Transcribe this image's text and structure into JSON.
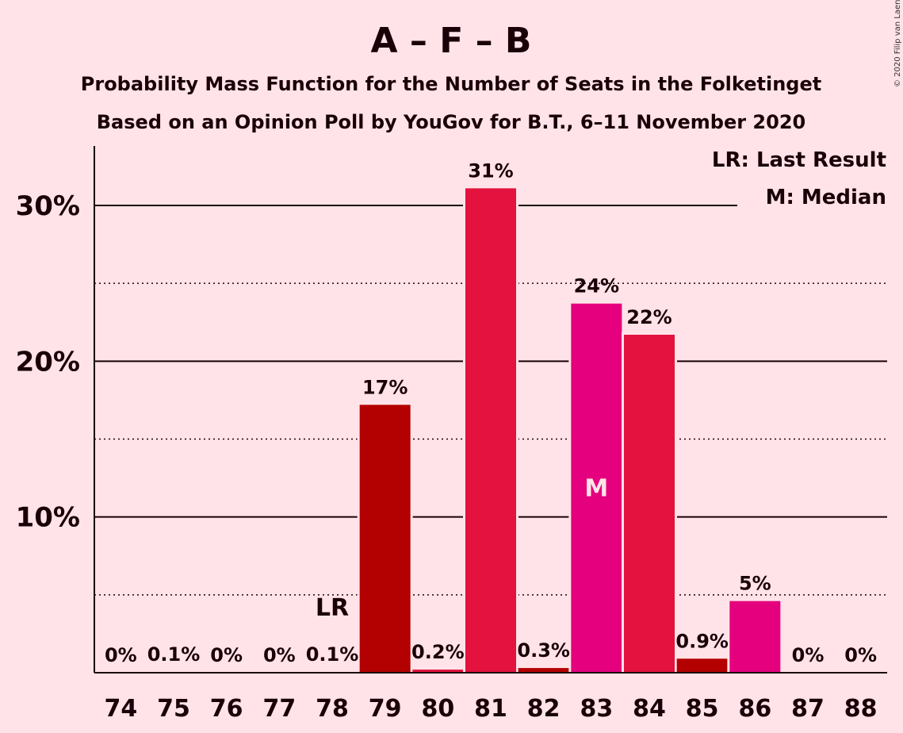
{
  "chart_data": {
    "type": "bar",
    "title": "A – F – B",
    "subtitle_1": "Probability Mass Function for the Number of Seats in the Folketinget",
    "subtitle_2": "Based on an Opinion Poll by YouGov for B.T., 6–11 November 2020",
    "copyright": "© 2020 Filip van Laenen",
    "legend": {
      "last_result": "LR: Last Result",
      "median": "M: Median"
    },
    "ylim": [
      0,
      34
    ],
    "yticks": [
      {
        "value": 10,
        "label": "10%"
      },
      {
        "value": 20,
        "label": "20%"
      },
      {
        "value": 30,
        "label": "30%"
      }
    ],
    "dotted_gridlines": [
      5,
      15,
      25
    ],
    "categories": [
      "74",
      "75",
      "76",
      "77",
      "78",
      "79",
      "80",
      "81",
      "82",
      "83",
      "84",
      "85",
      "86",
      "87",
      "88"
    ],
    "values": [
      0,
      0.05,
      0,
      0,
      0.05,
      17.2,
      0.2,
      31.1,
      0.3,
      23.7,
      21.7,
      0.9,
      4.6,
      0,
      0
    ],
    "data_labels": [
      "0%",
      "0.1%",
      "0%",
      "0%",
      "0.1%",
      "17%",
      "0.2%",
      "31%",
      "0.3%",
      "24%",
      "22%",
      "0.9%",
      "5%",
      "0%",
      "0%"
    ],
    "bar_colors": [
      "#B30000",
      "#E3123E",
      "#E5007D",
      "#B30000",
      "#E3123E",
      "#B30000",
      "#E3123E",
      "#E3123E",
      "#B30000",
      "#E5007D",
      "#E3123E",
      "#B30000",
      "#E5007D",
      "#B30000",
      "#E3123E"
    ],
    "last_result": {
      "category": "78",
      "label": "LR"
    },
    "median": {
      "category": "83",
      "label": "M"
    },
    "colors": {
      "background": "#FFE3E8",
      "text": "#1a0008",
      "axis": "#1a0008"
    }
  }
}
